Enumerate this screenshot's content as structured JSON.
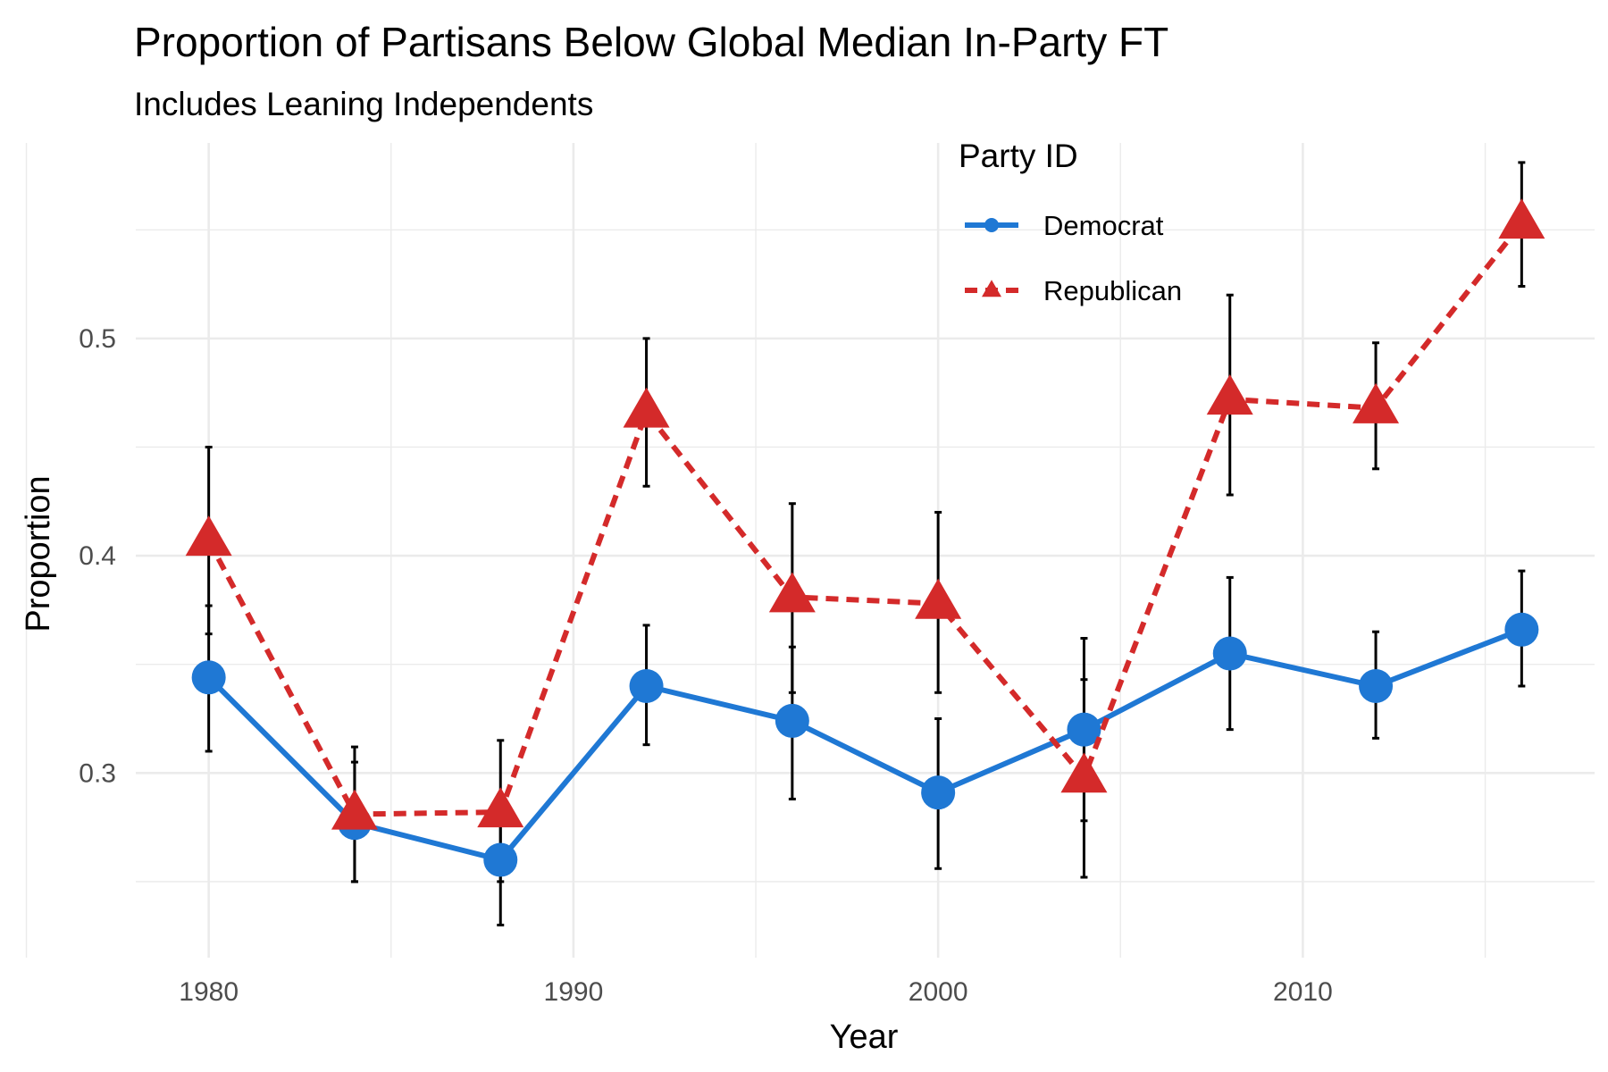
{
  "chart_data": {
    "type": "line",
    "title": "Proportion of Partisans Below Global Median In-Party FT",
    "subtitle": "Includes Leaning Independents",
    "xlabel": "Year",
    "ylabel": "Proportion",
    "xlim": [
      1978,
      2018
    ],
    "ylim": [
      0.215,
      0.59
    ],
    "x_ticks": [
      1980,
      1990,
      2000,
      2010
    ],
    "x_tick_labels": [
      "1980",
      "1990",
      "2000",
      "2010"
    ],
    "y_ticks": [
      0.3,
      0.4,
      0.5
    ],
    "y_tick_labels": [
      "0.3",
      "0.4",
      "0.5"
    ],
    "grid": true,
    "legend": {
      "title": "Party ID",
      "position": "top-right"
    },
    "x": [
      1980,
      1984,
      1988,
      1992,
      1996,
      2000,
      2004,
      2008,
      2012,
      2016
    ],
    "series": [
      {
        "name": "Democrat",
        "color": "#1f78d4",
        "marker": "circle",
        "line_style": "solid",
        "values": [
          0.344,
          0.277,
          0.26,
          0.34,
          0.324,
          0.291,
          0.32,
          0.355,
          0.34,
          0.366
        ],
        "lower": [
          0.31,
          0.25,
          0.23,
          0.313,
          0.288,
          0.256,
          0.278,
          0.32,
          0.316,
          0.34
        ],
        "upper": [
          0.377,
          0.305,
          0.29,
          0.368,
          0.358,
          0.325,
          0.362,
          0.39,
          0.365,
          0.393
        ]
      },
      {
        "name": "Republican",
        "color": "#d42a2a",
        "marker": "triangle",
        "line_style": "dashed",
        "values": [
          0.407,
          0.281,
          0.282,
          0.466,
          0.381,
          0.378,
          0.298,
          0.472,
          0.468,
          0.553
        ],
        "lower": [
          0.364,
          0.25,
          0.25,
          0.432,
          0.337,
          0.337,
          0.252,
          0.428,
          0.44,
          0.524
        ],
        "upper": [
          0.45,
          0.312,
          0.315,
          0.5,
          0.424,
          0.42,
          0.343,
          0.52,
          0.498,
          0.581
        ]
      }
    ]
  }
}
